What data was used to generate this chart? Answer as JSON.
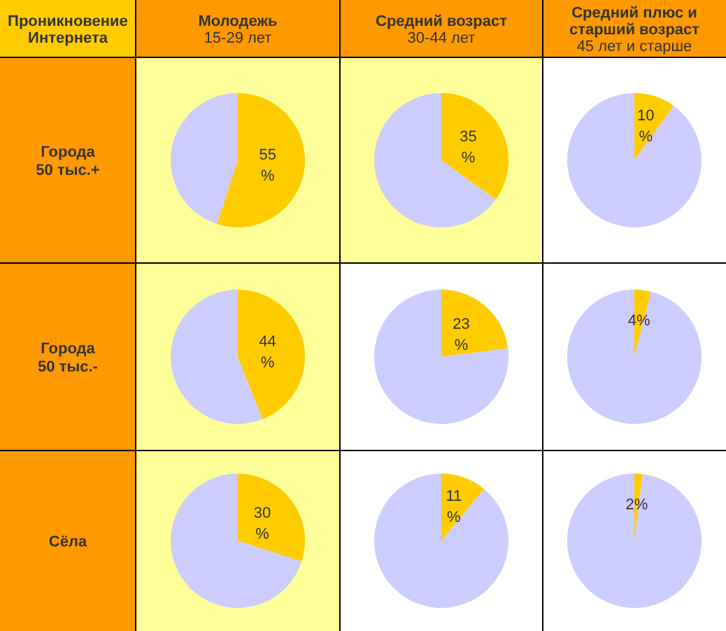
{
  "chart_data": [
    {
      "type": "other",
      "title": "Проникновение Интернета",
      "annotations": [
        "Молодежь\n15-29 лет",
        "Средний возраст\n30-44 лет",
        "Средний плюс и\nстарший возраст\n45 лет и старше",
        "Города\n50 тыс.+",
        "Города\n50 тыс.-",
        "Сёла"
      ]
    },
    {
      "type": "pie",
      "categories": [
        null,
        null
      ],
      "values": [
        55,
        45
      ],
      "colors": [
        "#ffcc00",
        "#ccccff"
      ],
      "value_labels": [
        "55 %",
        null
      ]
    },
    {
      "type": "pie",
      "categories": [
        null,
        null
      ],
      "values": [
        35,
        65
      ],
      "colors": [
        "#ffcc00",
        "#ccccff"
      ],
      "value_labels": [
        "35 %",
        null
      ]
    },
    {
      "type": "pie",
      "categories": [
        null,
        null
      ],
      "values": [
        10,
        90
      ],
      "colors": [
        "#ffcc00",
        "#ccccff"
      ],
      "value_labels": [
        "10 %",
        null
      ]
    },
    {
      "type": "pie",
      "categories": [
        null,
        null
      ],
      "values": [
        44,
        56
      ],
      "colors": [
        "#ffcc00",
        "#ccccff"
      ],
      "value_labels": [
        "44 %",
        null
      ]
    },
    {
      "type": "pie",
      "categories": [
        null,
        null
      ],
      "values": [
        23,
        77
      ],
      "colors": [
        "#ffcc00",
        "#ccccff"
      ],
      "value_labels": [
        "23 %",
        null
      ]
    },
    {
      "type": "pie",
      "categories": [
        null,
        null
      ],
      "values": [
        4,
        96
      ],
      "colors": [
        "#ffcc00",
        "#ccccff"
      ],
      "value_labels": [
        "4%",
        null
      ]
    },
    {
      "type": "pie",
      "categories": [
        null,
        null
      ],
      "values": [
        30,
        70
      ],
      "colors": [
        "#ffcc00",
        "#ccccff"
      ],
      "value_labels": [
        "30 %",
        null
      ]
    },
    {
      "type": "pie",
      "categories": [
        null,
        null
      ],
      "values": [
        11,
        89
      ],
      "colors": [
        "#ffcc00",
        "#ccccff"
      ],
      "value_labels": [
        "11 %",
        null
      ]
    },
    {
      "type": "pie",
      "categories": [
        null,
        null
      ],
      "values": [
        2,
        98
      ],
      "colors": [
        "#ffcc00",
        "#ccccff"
      ],
      "value_labels": [
        "2%",
        null
      ]
    }
  ]
}
